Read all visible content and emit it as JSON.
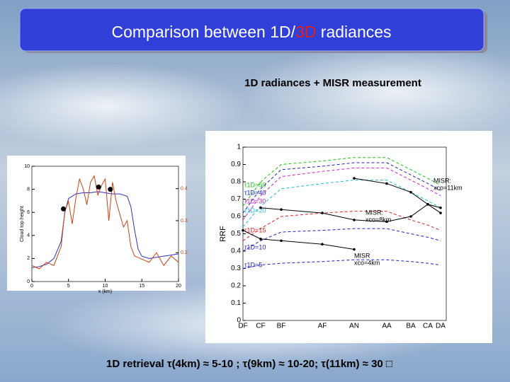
{
  "title_parts": [
    "Comparison between 1D/",
    "3D",
    " radiances"
  ],
  "subtitle": "1D radiances + MISR measurement",
  "caption": "1D retrieval τ(4km) ≈ 5-10 ; τ(9km) ≈ 10-20; τ(11km) ≈ 30 □",
  "chart_data": [
    {
      "type": "line",
      "ylabel": "Cloud top height",
      "xlabel": "x (km)",
      "xlim": [
        0,
        20
      ],
      "xticks": [
        0,
        5,
        10,
        15,
        20
      ],
      "ylim": [
        0,
        10
      ],
      "yticks": [
        0,
        2,
        4,
        6,
        8,
        10
      ],
      "y2lim": [
        0.11,
        0.47
      ],
      "y2ticks": [
        0.2,
        0.3,
        0.4
      ],
      "series": [
        {
          "color": "#3030c0",
          "x": [
            0,
            1,
            2,
            3,
            4,
            4.5,
            5,
            6,
            7,
            8,
            9,
            10,
            11,
            12,
            13,
            13.5,
            14,
            14.5,
            15,
            16,
            17,
            18,
            19,
            20
          ],
          "values": [
            1.2,
            1.3,
            1.5,
            2.0,
            3.5,
            6.0,
            7.2,
            7.6,
            7.7,
            7.7,
            7.8,
            7.7,
            7.6,
            7.6,
            7.4,
            6.5,
            4.5,
            2.8,
            2.2,
            2.0,
            2.1,
            2.2,
            2.3,
            2.4
          ]
        },
        {
          "color": "#d04010",
          "axis": "y2",
          "x": [
            0,
            1,
            2,
            3,
            3.5,
            4,
            4.5,
            5,
            5.5,
            6,
            6.5,
            7,
            7.5,
            8,
            8.5,
            9,
            9.5,
            10,
            10.5,
            11,
            11.5,
            12,
            12.5,
            13,
            13.5,
            14,
            15,
            16,
            17,
            18,
            19,
            20
          ],
          "values": [
            0.16,
            0.15,
            0.17,
            0.16,
            0.19,
            0.22,
            0.33,
            0.36,
            0.29,
            0.37,
            0.43,
            0.4,
            0.35,
            0.42,
            0.44,
            0.38,
            0.41,
            0.43,
            0.3,
            0.42,
            0.36,
            0.32,
            0.28,
            0.3,
            0.22,
            0.19,
            0.18,
            0.17,
            0.2,
            0.16,
            0.19,
            0.17
          ]
        },
        {
          "color": "#000000",
          "marker": true,
          "x": [
            4.3,
            9.1,
            10.7
          ],
          "values": [
            6.3,
            8.2,
            8.0
          ]
        }
      ]
    },
    {
      "type": "line",
      "ylabel": "RRF",
      "categories": [
        "DF",
        "CF",
        "BF",
        "AF",
        "AN",
        "AA",
        "BA",
        "CA",
        "DA"
      ],
      "ylim": [
        0,
        1
      ],
      "yticks": [
        0,
        0.1,
        0.2,
        0.3,
        0.4,
        0.5,
        0.6,
        0.7,
        0.8,
        0.9,
        1
      ],
      "series": [
        {
          "name": "τ1D=50",
          "color": "#20c020",
          "dashed": true,
          "values": [
            0.66,
            0.8,
            0.9,
            0.92,
            0.94,
            0.94,
            0.87,
            0.82,
            0.78
          ]
        },
        {
          "name": "τ1D=40",
          "color": "#2020c0",
          "dashed": true,
          "values": [
            0.62,
            0.76,
            0.87,
            0.89,
            0.91,
            0.91,
            0.84,
            0.79,
            0.75
          ]
        },
        {
          "name": "τ1D=30",
          "color": "#d020d0",
          "dashed": true,
          "values": [
            0.58,
            0.72,
            0.83,
            0.86,
            0.88,
            0.88,
            0.81,
            0.76,
            0.72
          ]
        },
        {
          "name": "τ1D=20",
          "color": "#20c0d0",
          "dashed": true,
          "values": [
            0.54,
            0.66,
            0.76,
            0.79,
            0.81,
            0.81,
            0.74,
            0.69,
            0.65
          ]
        },
        {
          "name": "τ1D=15",
          "color": "#e02020",
          "dashed": true,
          "values": [
            0.46,
            0.53,
            0.6,
            0.62,
            0.63,
            0.63,
            0.58,
            0.55,
            0.52
          ]
        },
        {
          "name": "τ1D=10",
          "color": "#2020c0",
          "dashed": true,
          "values": [
            0.4,
            0.46,
            0.51,
            0.52,
            0.53,
            0.53,
            0.5,
            0.48,
            0.46
          ]
        },
        {
          "name": "τ1D=5",
          "color": "#2020c0",
          "dashed": true,
          "values": [
            0.3,
            0.32,
            0.33,
            0.34,
            0.35,
            0.35,
            0.34,
            0.33,
            0.32
          ]
        },
        {
          "label_lines": [
            "MISR:",
            "xco=11km"
          ],
          "color": "#000000",
          "marker": true,
          "values": [
            null,
            null,
            null,
            null,
            0.82,
            0.79,
            0.74,
            0.67,
            0.62
          ]
        },
        {
          "label_lines": [
            "MISR:",
            "xco=8km"
          ],
          "color": "#000000",
          "marker": true,
          "values": [
            null,
            0.65,
            0.64,
            0.62,
            0.58,
            0.57,
            0.6,
            0.67,
            0.65
          ]
        },
        {
          "label_lines": [
            "MISR",
            "xco=4km"
          ],
          "color": "#000000",
          "marker": true,
          "values": [
            0.52,
            0.47,
            0.46,
            0.44,
            0.41,
            null,
            null,
            null,
            null
          ]
        }
      ]
    }
  ]
}
